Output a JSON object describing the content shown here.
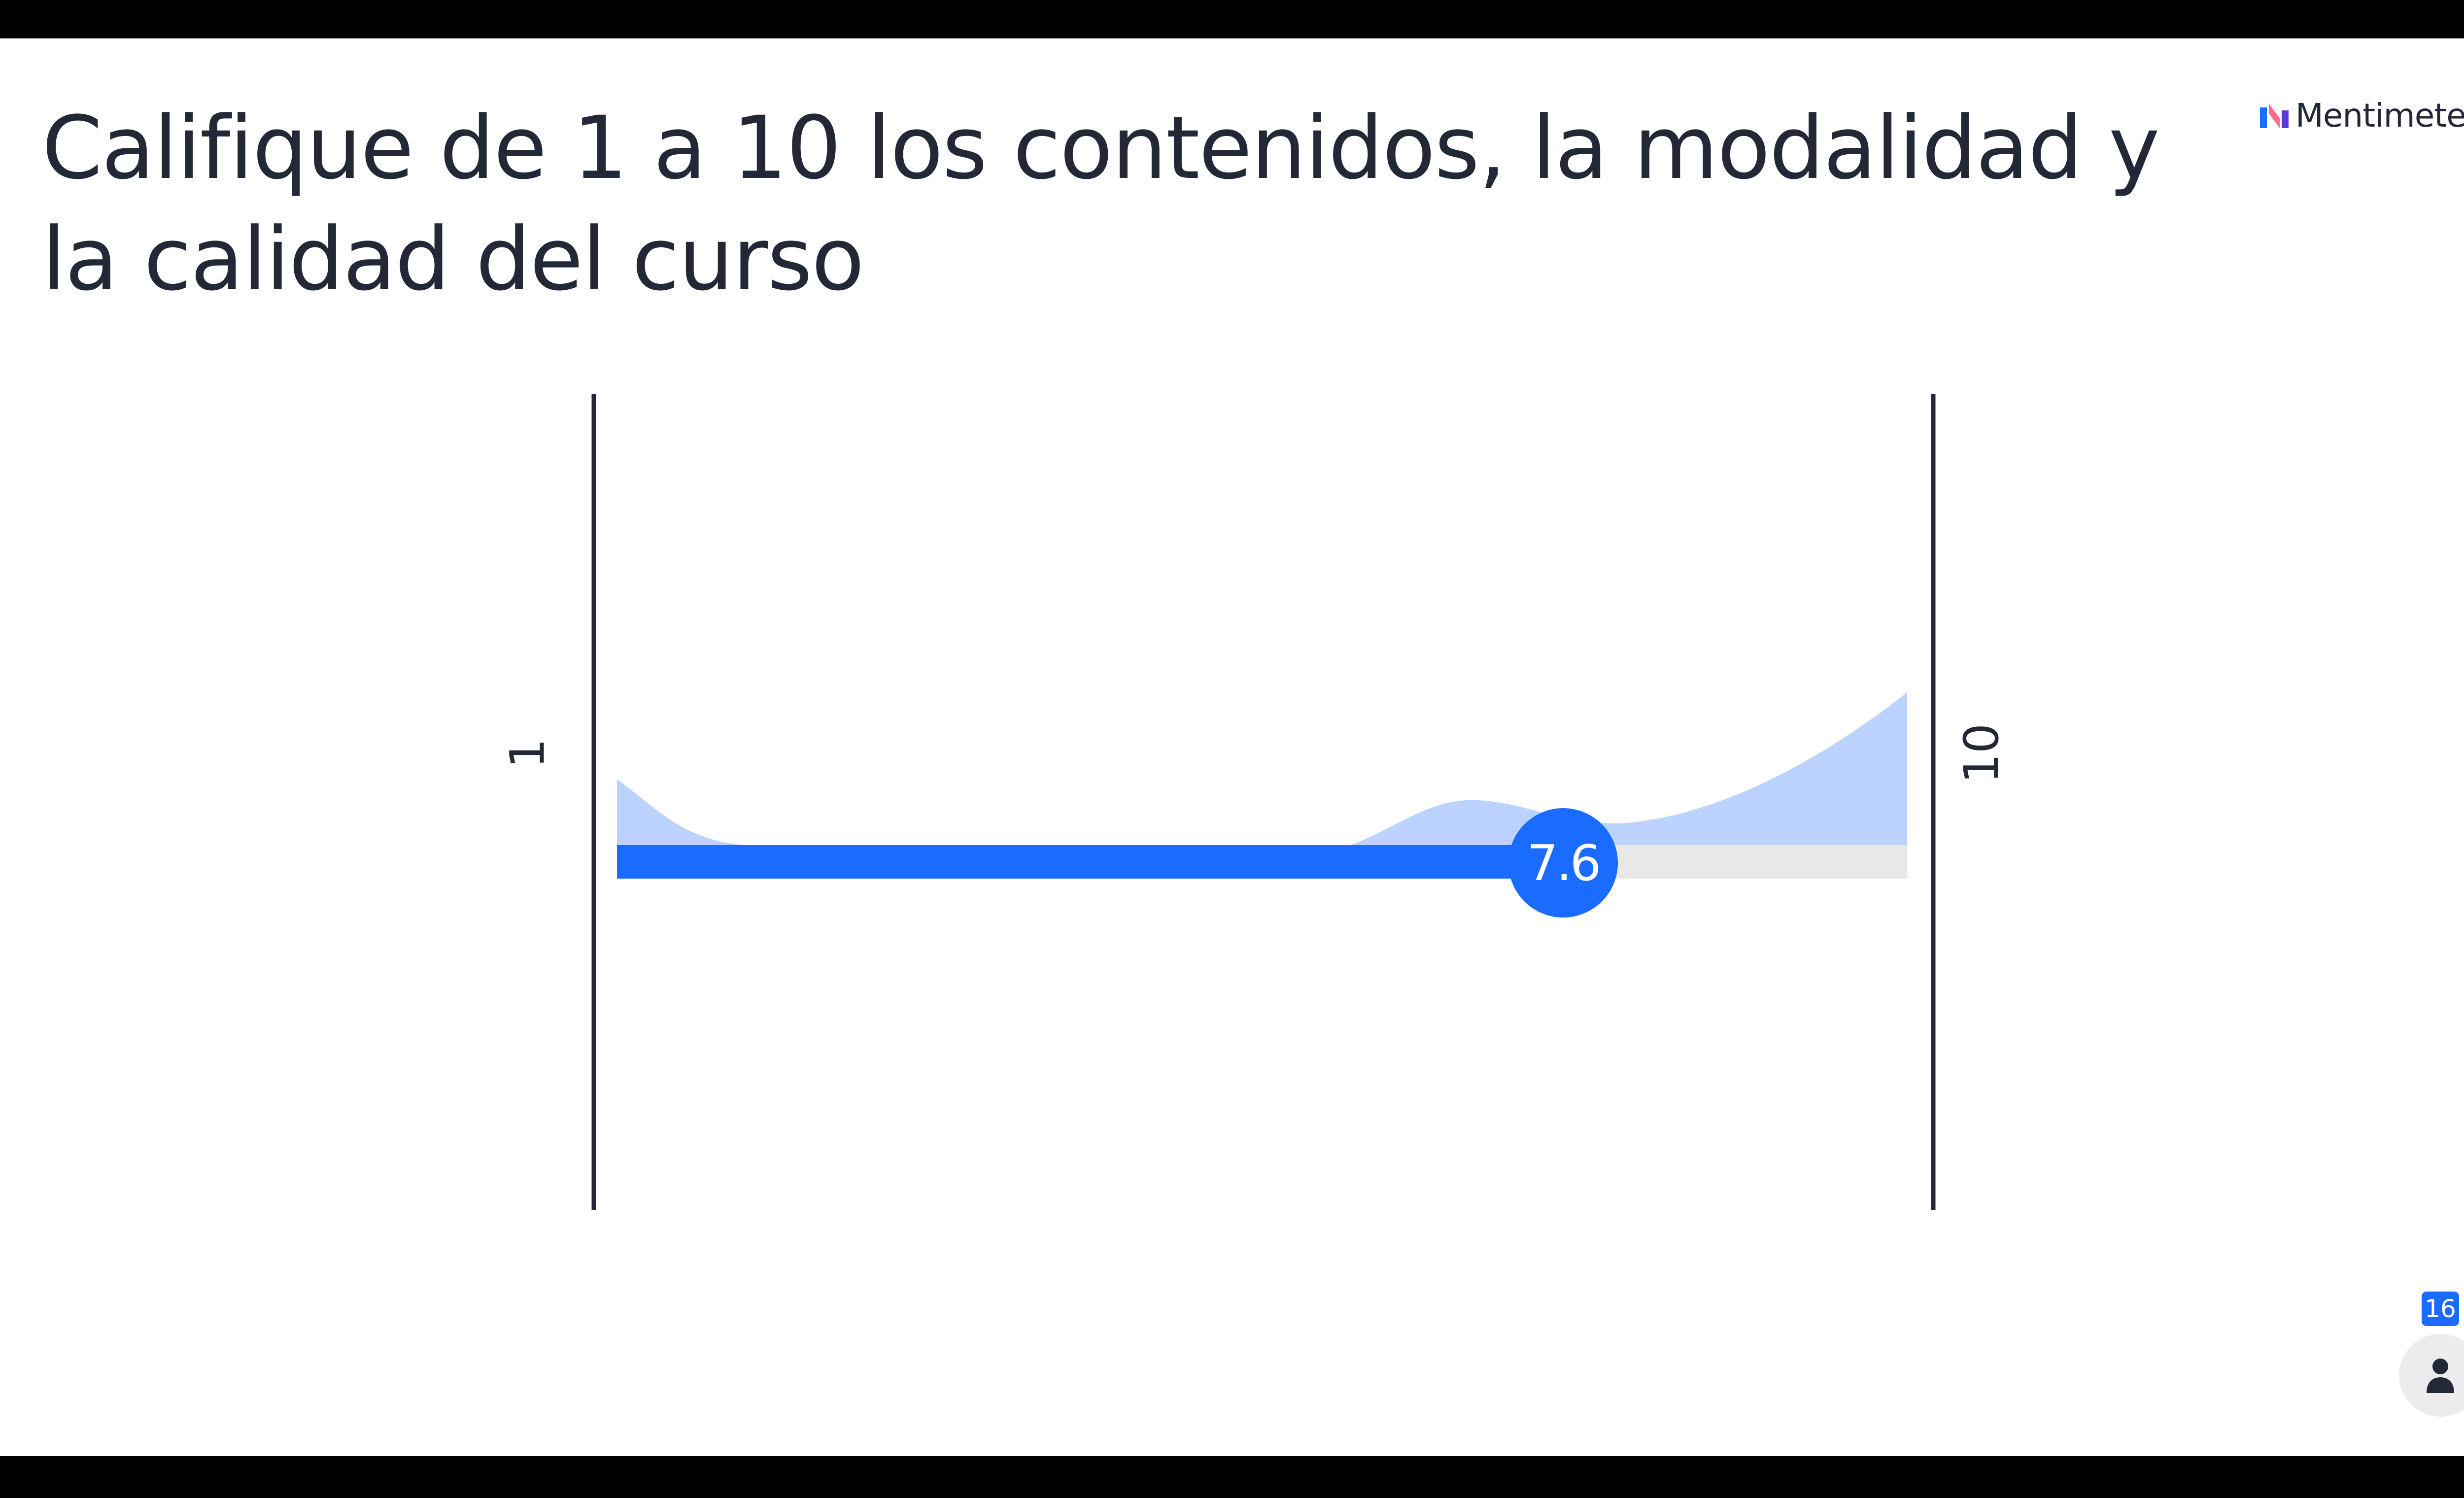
{
  "slide": {
    "title": "Califique de 1 a 10 los contenidos, la modalidad y la calidad del curso"
  },
  "brand": {
    "name": "Mentimeter"
  },
  "scale": {
    "min_label": "1",
    "max_label": "10",
    "min": 1,
    "max": 10,
    "average": 7.6,
    "average_label": "7.6"
  },
  "participants": {
    "count": "16",
    "icon": "person-icon"
  },
  "colors": {
    "accent": "#196cff",
    "distribution": "#bcd3ff",
    "track": "#e8e8e9",
    "text": "#222835"
  }
}
